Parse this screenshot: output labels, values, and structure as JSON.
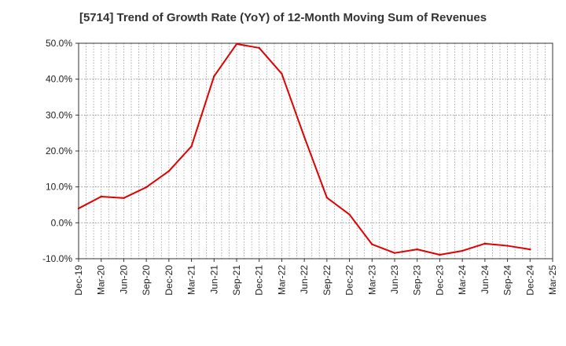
{
  "chart_data": {
    "type": "line",
    "title": "[5714]  Trend of Growth Rate (YoY) of 12-Month Moving Sum of Revenues",
    "xlabel": "",
    "ylabel": "",
    "ylim": [
      -10,
      50
    ],
    "y_ticks": [
      -10,
      0,
      10,
      20,
      30,
      40,
      50
    ],
    "y_tick_labels": [
      "-10.0%",
      "0.0%",
      "10.0%",
      "20.0%",
      "30.0%",
      "40.0%",
      "50.0%"
    ],
    "x_tick_labels": [
      "Dec-19",
      "Mar-20",
      "Jun-20",
      "Sep-20",
      "Dec-20",
      "Mar-21",
      "Jun-21",
      "Sep-21",
      "Dec-21",
      "Mar-22",
      "Jun-22",
      "Sep-22",
      "Dec-22",
      "Mar-23",
      "Jun-23",
      "Sep-23",
      "Dec-23",
      "Mar-24",
      "Jun-24",
      "Sep-24",
      "Dec-24",
      "Mar-25"
    ],
    "grid": true,
    "series": [
      {
        "color": "#e00000",
        "x": [
          "Dec-19",
          "Mar-20",
          "Jun-20",
          "Sep-20",
          "Dec-20",
          "Mar-21",
          "Jun-21",
          "Sep-21",
          "Dec-21",
          "Mar-22",
          "Jun-22",
          "Sep-22",
          "Dec-22",
          "Mar-23",
          "Jun-23",
          "Sep-23",
          "Dec-23",
          "Mar-24",
          "Jun-24",
          "Sep-24",
          "Dec-24"
        ],
        "values": [
          4.0,
          7.3,
          6.9,
          9.9,
          14.4,
          21.3,
          40.8,
          49.8,
          48.7,
          41.5,
          23.9,
          7.0,
          2.3,
          -6.0,
          -8.4,
          -7.4,
          -8.9,
          -7.8,
          -5.8,
          -6.4,
          -7.4
        ]
      }
    ]
  }
}
